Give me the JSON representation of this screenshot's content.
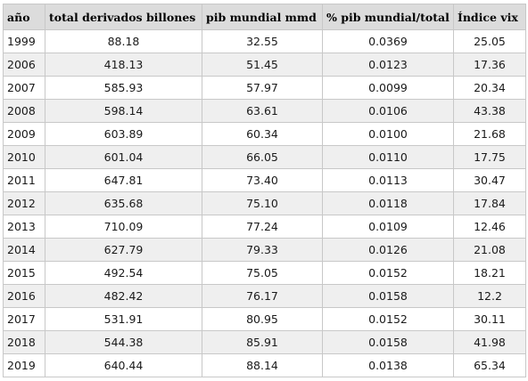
{
  "table": {
    "headers": [
      "año",
      "total derivados billones",
      "pib mundial mmd",
      "% pib mundial/total",
      "Índice vix"
    ],
    "rows": [
      [
        "1999",
        "88.18",
        "32.55",
        "0.0369",
        "25.05"
      ],
      [
        "2006",
        "418.13",
        "51.45",
        "0.0123",
        "17.36"
      ],
      [
        "2007",
        "585.93",
        "57.97",
        "0.0099",
        "20.34"
      ],
      [
        "2008",
        "598.14",
        "63.61",
        "0.0106",
        "43.38"
      ],
      [
        "2009",
        "603.89",
        "60.34",
        "0.0100",
        "21.68"
      ],
      [
        "2010",
        "601.04",
        "66.05",
        "0.0110",
        "17.75"
      ],
      [
        "2011",
        "647.81",
        "73.40",
        "0.0113",
        "30.47"
      ],
      [
        "2012",
        "635.68",
        "75.10",
        "0.0118",
        "17.84"
      ],
      [
        "2013",
        "710.09",
        "77.24",
        "0.0109",
        "12.46"
      ],
      [
        "2014",
        "627.79",
        "79.33",
        "0.0126",
        "21.08"
      ],
      [
        "2015",
        "492.54",
        "75.05",
        "0.0152",
        "18.21"
      ],
      [
        "2016",
        "482.42",
        "76.17",
        "0.0158",
        "12.2"
      ],
      [
        "2017",
        "531.91",
        "80.95",
        "0.0152",
        "30.11"
      ],
      [
        "2018",
        "544.38",
        "85.91",
        "0.0158",
        "41.98"
      ],
      [
        "2019",
        "640.44",
        "88.14",
        "0.0138",
        "65.34"
      ]
    ]
  }
}
